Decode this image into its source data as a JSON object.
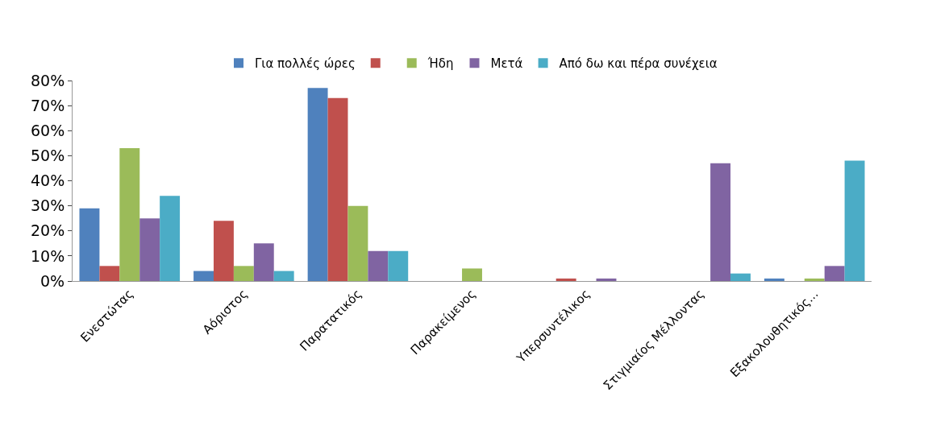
{
  "chart_data": {
    "type": "bar",
    "categories": [
      "Ενεστώτας",
      "Αόριστος",
      "Παρατατικός",
      "Παρακείμενος",
      "Υπερσυντέλικος",
      "Στιγμιαίος Μέλλοντας",
      "Εξακολουθητικός..."
    ],
    "series": [
      {
        "name": "Για πολλές ώρες",
        "color": "#4f81bd",
        "values": [
          29,
          4,
          77,
          0,
          0,
          0,
          1
        ]
      },
      {
        "color": "#c0504d",
        "values": [
          6,
          24,
          73,
          0,
          1,
          0,
          0
        ]
      },
      {
        "name": "Ήδη",
        "color": "#9bbb59",
        "values": [
          53,
          6,
          30,
          5,
          0,
          0,
          1
        ]
      },
      {
        "name": "Μετά",
        "color": "#8064a2",
        "values": [
          25,
          15,
          12,
          0,
          1,
          47,
          6
        ]
      },
      {
        "name": "Από δω και πέρα συνέχεια",
        "color": "#4bacc6",
        "values": [
          34,
          4,
          12,
          0,
          0,
          3,
          48
        ]
      }
    ],
    "ylim": [
      0,
      80
    ],
    "yticks": [
      {
        "value": 0,
        "label": "0%"
      },
      {
        "value": 10,
        "label": "10%"
      },
      {
        "value": 20,
        "label": "20%"
      },
      {
        "value": 30,
        "label": "30%"
      },
      {
        "value": 40,
        "label": "40%"
      },
      {
        "value": 50,
        "label": "50%"
      },
      {
        "value": 60,
        "label": "60%"
      },
      {
        "value": 70,
        "label": "70%"
      },
      {
        "value": 80,
        "label": "80%"
      }
    ],
    "grid": false,
    "legend": "top"
  }
}
